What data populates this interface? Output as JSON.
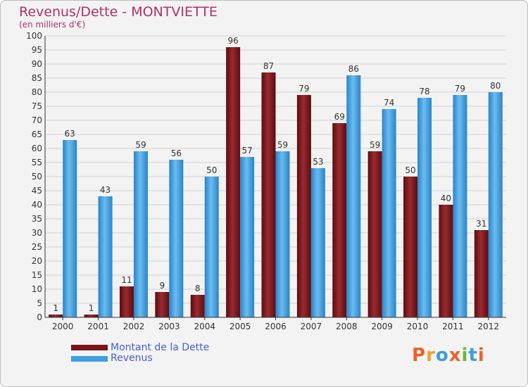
{
  "chart_data": {
    "type": "bar",
    "title": "Revenus/Dette - MONTVIETTE",
    "subtitle": "(en milliers d'€)",
    "xlabel": "",
    "ylabel": "",
    "ylim": [
      0,
      100
    ],
    "ytick_step": 5,
    "grid": true,
    "categories": [
      "2000",
      "2001",
      "2002",
      "2003",
      "2004",
      "2005",
      "2006",
      "2007",
      "2008",
      "2009",
      "2010",
      "2011",
      "2012"
    ],
    "series": [
      {
        "name": "Montant de la Dette",
        "color": "#7a1418",
        "values": [
          1,
          1,
          11,
          9,
          8,
          96,
          87,
          79,
          69,
          59,
          50,
          40,
          31
        ]
      },
      {
        "name": "Revenus",
        "color": "#3f9fe0",
        "values": [
          63,
          43,
          59,
          56,
          50,
          57,
          59,
          53,
          86,
          74,
          78,
          79,
          80
        ]
      }
    ],
    "legend": {
      "position": "bottom-left"
    }
  },
  "brand": {
    "logo_text": "Proxiti",
    "logo_colors": [
      "#e8632b",
      "#f0a22a",
      "#3c9fd8",
      "#e8632b",
      "#6cb83a",
      "#3c9fd8",
      "#e8632b"
    ]
  }
}
